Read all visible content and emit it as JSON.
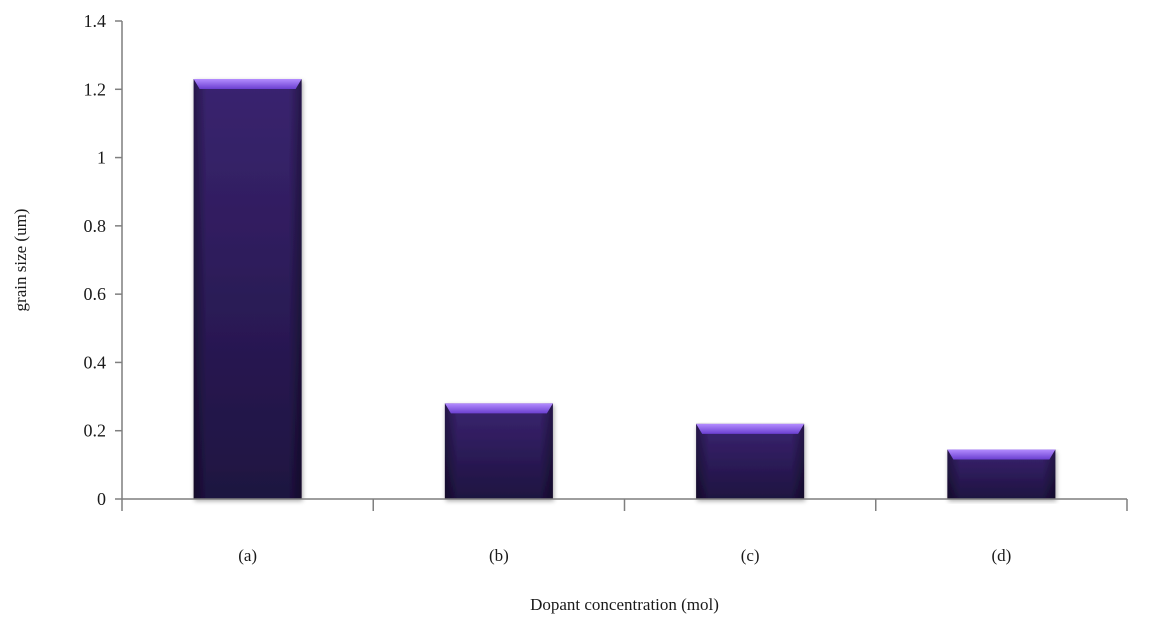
{
  "chart_data": {
    "type": "bar",
    "categories": [
      "(a)",
      "(b)",
      "(c)",
      "(d)"
    ],
    "values": [
      1.23,
      0.28,
      0.22,
      0.145
    ],
    "xlabel": "Dopant concentration (mol)",
    "ylabel": "grain size (um)",
    "ylim": [
      0,
      1.4
    ],
    "yticks": [
      "0",
      "0.2",
      "0.4",
      "0.6",
      "0.8",
      "1",
      "1.2",
      "1.4"
    ],
    "grid": false,
    "legend": "none",
    "colors": {
      "bar_top": "#8a57e8",
      "bar_body_top": "#3a2470",
      "bar_body_bottom": "#1e1240",
      "axis": "#7f7f7f"
    }
  }
}
